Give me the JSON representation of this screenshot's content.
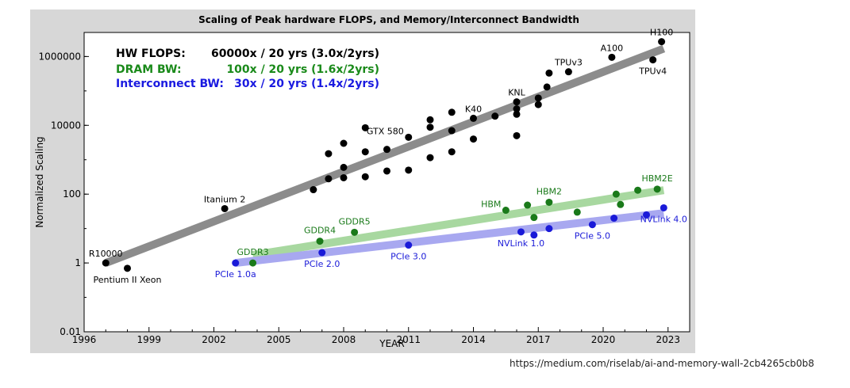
{
  "source_url": "https://medium.com/riselab/ai-and-memory-wall-2cb4265cb0b8",
  "colors": {
    "hw": "#000000",
    "hw_trend": "#8c8c8c",
    "dram": "#1a7a1a",
    "dram_trend": "#a8d8a0",
    "interconnect": "#1a1ad8",
    "interconnect_trend": "#a8a8f0",
    "dram_legend": "#1a8a1a",
    "interconnect_legend": "#1a1ae0",
    "frame": "#d7d7d7"
  },
  "chart_data": {
    "type": "scatter",
    "title": "Scaling of Peak hardware FLOPS, and Memory/Interconnect Bandwidth",
    "xlabel": "YEAR",
    "ylabel": "Normalized Scaling",
    "xlim": [
      1996,
      2024
    ],
    "ylim": [
      0.01,
      5000000
    ],
    "yscale": "log",
    "grid": false,
    "xticks": [
      1996,
      1999,
      2002,
      2005,
      2008,
      2011,
      2014,
      2017,
      2020,
      2023
    ],
    "yticks": [
      {
        "value": 0.01,
        "label": "0.01"
      },
      {
        "value": 1,
        "label": "1"
      },
      {
        "value": 100,
        "label": "100"
      },
      {
        "value": 10000,
        "label": "10000"
      },
      {
        "value": 1000000,
        "label": "1000000"
      }
    ],
    "legend": {
      "placement": "top-left",
      "entries": [
        {
          "series": "HW FLOPS",
          "label": "HW FLOPS:",
          "value": "60000x / 20 yrs (3.0x/2yrs)"
        },
        {
          "series": "DRAM BW",
          "label": "DRAM BW:",
          "value": "100x / 20 yrs (1.6x/2yrs)"
        },
        {
          "series": "Interconnect BW",
          "label": "Interconnect BW:",
          "value": "30x / 20 yrs (1.4x/2yrs)"
        }
      ]
    },
    "trendlines": [
      {
        "series": "HW FLOPS",
        "x": [
          1997,
          2022.8
        ],
        "y": [
          1,
          1700000
        ]
      },
      {
        "series": "DRAM BW",
        "x": [
          2003.8,
          2022.8
        ],
        "y": [
          1.7,
          130
        ]
      },
      {
        "series": "Interconnect BW",
        "x": [
          2003,
          2022.8
        ],
        "y": [
          1,
          28
        ]
      }
    ],
    "series": [
      {
        "name": "HW FLOPS",
        "points": [
          {
            "x": 1997.0,
            "y": 1,
            "label": "R10000",
            "label_pos": "above"
          },
          {
            "x": 1998.0,
            "y": 0.7,
            "label": "Pentium II Xeon",
            "label_pos": "below"
          },
          {
            "x": 2002.5,
            "y": 38,
            "label": "Itanium 2",
            "label_pos": "above"
          },
          {
            "x": 2006.6,
            "y": 135
          },
          {
            "x": 2007.3,
            "y": 280
          },
          {
            "x": 2007.3,
            "y": 1500
          },
          {
            "x": 2008.0,
            "y": 600
          },
          {
            "x": 2008.0,
            "y": 300
          },
          {
            "x": 2008.0,
            "y": 3000
          },
          {
            "x": 2009.0,
            "y": 320
          },
          {
            "x": 2009.0,
            "y": 1700
          },
          {
            "x": 2009.0,
            "y": 8500
          },
          {
            "x": 2010.0,
            "y": 470
          },
          {
            "x": 2010.0,
            "y": 2000
          },
          {
            "x": 2011.0,
            "y": 4500,
            "label": "GTX 580",
            "label_pos": "left-above"
          },
          {
            "x": 2011.0,
            "y": 500
          },
          {
            "x": 2012.0,
            "y": 1150
          },
          {
            "x": 2012.0,
            "y": 8800
          },
          {
            "x": 2012.0,
            "y": 14500
          },
          {
            "x": 2013.0,
            "y": 7000
          },
          {
            "x": 2013.0,
            "y": 24000
          },
          {
            "x": 2013.0,
            "y": 1700
          },
          {
            "x": 2014.0,
            "y": 4000
          },
          {
            "x": 2014.0,
            "y": 16000,
            "label": "K40",
            "label_pos": "above"
          },
          {
            "x": 2015.0,
            "y": 18500
          },
          {
            "x": 2016.0,
            "y": 5000
          },
          {
            "x": 2016.0,
            "y": 21000
          },
          {
            "x": 2016.0,
            "y": 30000
          },
          {
            "x": 2016.0,
            "y": 48000,
            "label": "KNL",
            "label_pos": "above"
          },
          {
            "x": 2017.0,
            "y": 40000
          },
          {
            "x": 2017.0,
            "y": 62000
          },
          {
            "x": 2017.4,
            "y": 130000
          },
          {
            "x": 2017.5,
            "y": 330000
          },
          {
            "x": 2018.4,
            "y": 360000,
            "label": "TPUv3",
            "label_pos": "above"
          },
          {
            "x": 2020.4,
            "y": 950000,
            "label": "A100",
            "label_pos": "above"
          },
          {
            "x": 2022.3,
            "y": 800000,
            "label": "TPUv4",
            "label_pos": "below"
          },
          {
            "x": 2022.7,
            "y": 2700000,
            "label": "H100",
            "label_pos": "above"
          }
        ]
      },
      {
        "name": "DRAM BW",
        "points": [
          {
            "x": 2003.8,
            "y": 1,
            "label": "GDDR3",
            "label_pos": "above"
          },
          {
            "x": 2006.9,
            "y": 4.3,
            "label": "GDDR4",
            "label_pos": "above"
          },
          {
            "x": 2008.5,
            "y": 7.8,
            "label": "GDDR5",
            "label_pos": "above"
          },
          {
            "x": 2015.5,
            "y": 34,
            "label": "HBM",
            "label_pos": "left-above"
          },
          {
            "x": 2016.5,
            "y": 48
          },
          {
            "x": 2016.8,
            "y": 21
          },
          {
            "x": 2017.5,
            "y": 58,
            "label": "HBM2",
            "label_pos": "above"
          },
          {
            "x": 2018.8,
            "y": 30
          },
          {
            "x": 2020.6,
            "y": 100
          },
          {
            "x": 2020.8,
            "y": 50
          },
          {
            "x": 2021.6,
            "y": 130
          },
          {
            "x": 2022.5,
            "y": 140,
            "label": "HBM2E",
            "label_pos": "above"
          }
        ]
      },
      {
        "name": "Interconnect BW",
        "points": [
          {
            "x": 2003.0,
            "y": 1,
            "label": "PCIe 1.0a",
            "label_pos": "below"
          },
          {
            "x": 2007.0,
            "y": 2,
            "label": "PCIe 2.0",
            "label_pos": "below"
          },
          {
            "x": 2011.0,
            "y": 3.3,
            "label": "PCIe 3.0",
            "label_pos": "below"
          },
          {
            "x": 2016.2,
            "y": 8,
            "label": "NVLink 1.0",
            "label_pos": "below"
          },
          {
            "x": 2016.8,
            "y": 6.5
          },
          {
            "x": 2017.5,
            "y": 10
          },
          {
            "x": 2019.5,
            "y": 13,
            "label": "PCIe 5.0",
            "label_pos": "below"
          },
          {
            "x": 2020.5,
            "y": 20
          },
          {
            "x": 2022.0,
            "y": 25
          },
          {
            "x": 2022.8,
            "y": 40,
            "label": "NVLink 4.0",
            "label_pos": "below"
          }
        ]
      }
    ]
  }
}
